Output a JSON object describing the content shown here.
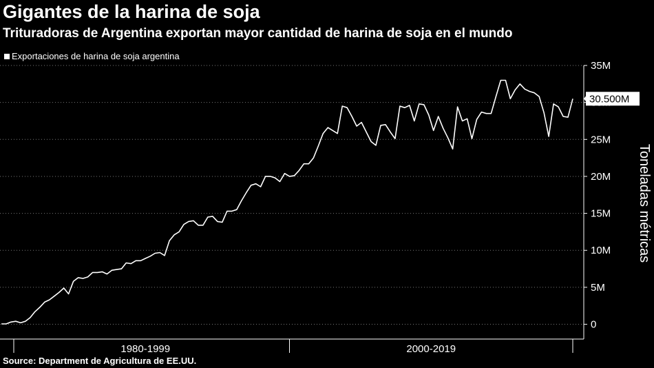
{
  "title": "Gigantes de la harina de soja",
  "subtitle": "Trituradoras de Argentina exportan mayor cantidad de harina de soja en el mundo",
  "legend_label": "Exportaciones de harina de soja argentina",
  "source": "Source: Department de Agricultura de EE.UU.",
  "chart_data": {
    "type": "line",
    "title": "Gigantes de la harina de soja",
    "subtitle": "Trituradoras de Argentina exportan mayor cantidad de harina de soja en el mundo",
    "ylabel": "Toneladas métricas",
    "xlabel": "",
    "ylim": [
      -2000000,
      35000000
    ],
    "yticks": [
      0,
      5000000,
      10000000,
      15000000,
      20000000,
      25000000,
      30000000,
      35000000
    ],
    "ytick_labels": [
      "0",
      "5M",
      "10M",
      "15M",
      "20M",
      "25M",
      "30M",
      "35M"
    ],
    "x_group_labels": [
      "1980-1999",
      "2000-2019"
    ],
    "last_value_label": "30.500M",
    "grid": "horizontal dotted",
    "legend_position": "top-left",
    "series": [
      {
        "name": "Exportaciones de harina de soja argentina",
        "values": [
          50000,
          50000,
          300000,
          400000,
          200000,
          400000,
          900000,
          1700000,
          2300000,
          3000000,
          3300000,
          3800000,
          4300000,
          4900000,
          4100000,
          5800000,
          6300000,
          6200000,
          6400000,
          7000000,
          7000000,
          7100000,
          6800000,
          7300000,
          7400000,
          7500000,
          8300000,
          8200000,
          8600000,
          8600000,
          8900000,
          9200000,
          9600000,
          9700000,
          9300000,
          11300000,
          12100000,
          12500000,
          13500000,
          13900000,
          14000000,
          13400000,
          13400000,
          14500000,
          14600000,
          13900000,
          13800000,
          15300000,
          15300000,
          15500000,
          16700000,
          17800000,
          18800000,
          19000000,
          18600000,
          20000000,
          20000000,
          19800000,
          19300000,
          20400000,
          20000000,
          20100000,
          20800000,
          21700000,
          21700000,
          22500000,
          24100000,
          25800000,
          26600000,
          26200000,
          25800000,
          29500000,
          29300000,
          28100000,
          26800000,
          27300000,
          26000000,
          24700000,
          24200000,
          26900000,
          27000000,
          26000000,
          25100000,
          29500000,
          29300000,
          29600000,
          27500000,
          29800000,
          29700000,
          28300000,
          26200000,
          28100000,
          26500000,
          25200000,
          23700000,
          29400000,
          27500000,
          27800000,
          25100000,
          27700000,
          28700000,
          28500000,
          28500000,
          30800000,
          33000000,
          33000000,
          30500000,
          31700000,
          32500000,
          31800000,
          31500000,
          31300000,
          30800000,
          28600000,
          25400000,
          29800000,
          29400000,
          28100000,
          28000000,
          30500000
        ]
      }
    ]
  }
}
